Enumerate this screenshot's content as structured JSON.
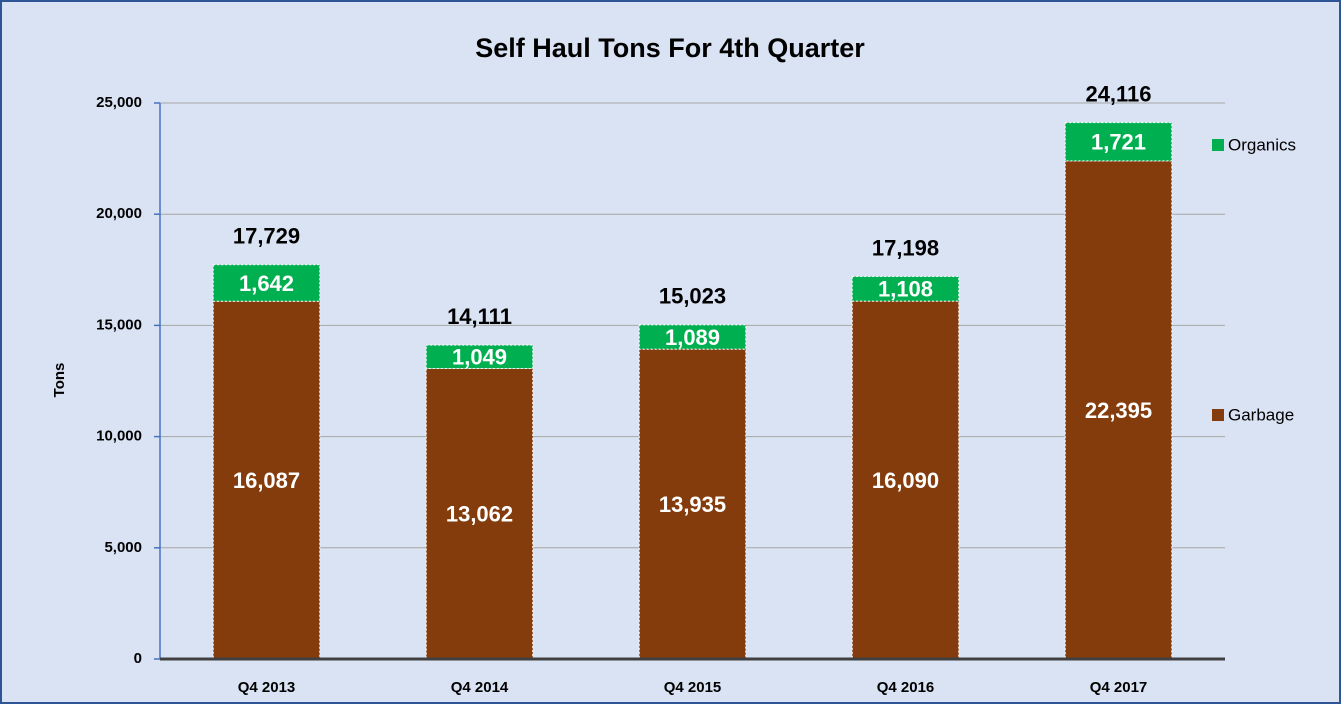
{
  "chart_data": {
    "type": "stacked_bar",
    "title": "Self Haul Tons For 4th Quarter",
    "y_label": "Tons",
    "categories": [
      "Q4 2013",
      "Q4 2014",
      "Q4 2015",
      "Q4 2016",
      "Q4 2017"
    ],
    "series": [
      {
        "name": "Garbage",
        "color": "#843c0c",
        "values": [
          16087,
          13062,
          13935,
          16090,
          22395
        ],
        "value_labels": [
          "16,087",
          "13,062",
          "13,935",
          "16,090",
          "22,395"
        ]
      },
      {
        "name": "Organics",
        "color": "#00b050",
        "values": [
          1642,
          1049,
          1089,
          1108,
          1721
        ],
        "value_labels": [
          "1,642",
          "1,049",
          "1,089",
          "1,108",
          "1,721"
        ]
      }
    ],
    "totals": {
      "values": [
        17729,
        14111,
        15023,
        17198,
        24116
      ],
      "value_labels": [
        "17,729",
        "14,111",
        "15,023",
        "17,198",
        "24,116"
      ]
    },
    "ylim": [
      0,
      25000
    ],
    "yticks": [
      0,
      {
        "value": 5000,
        "label": "5,000"
      },
      {
        "value": 10000,
        "label": "10,000"
      },
      {
        "value": 15000,
        "label": "15,000"
      },
      {
        "value": 20000,
        "label": "20,000"
      },
      {
        "value": 25000,
        "label": "25,000"
      }
    ],
    "grid": true,
    "legend": "right"
  }
}
